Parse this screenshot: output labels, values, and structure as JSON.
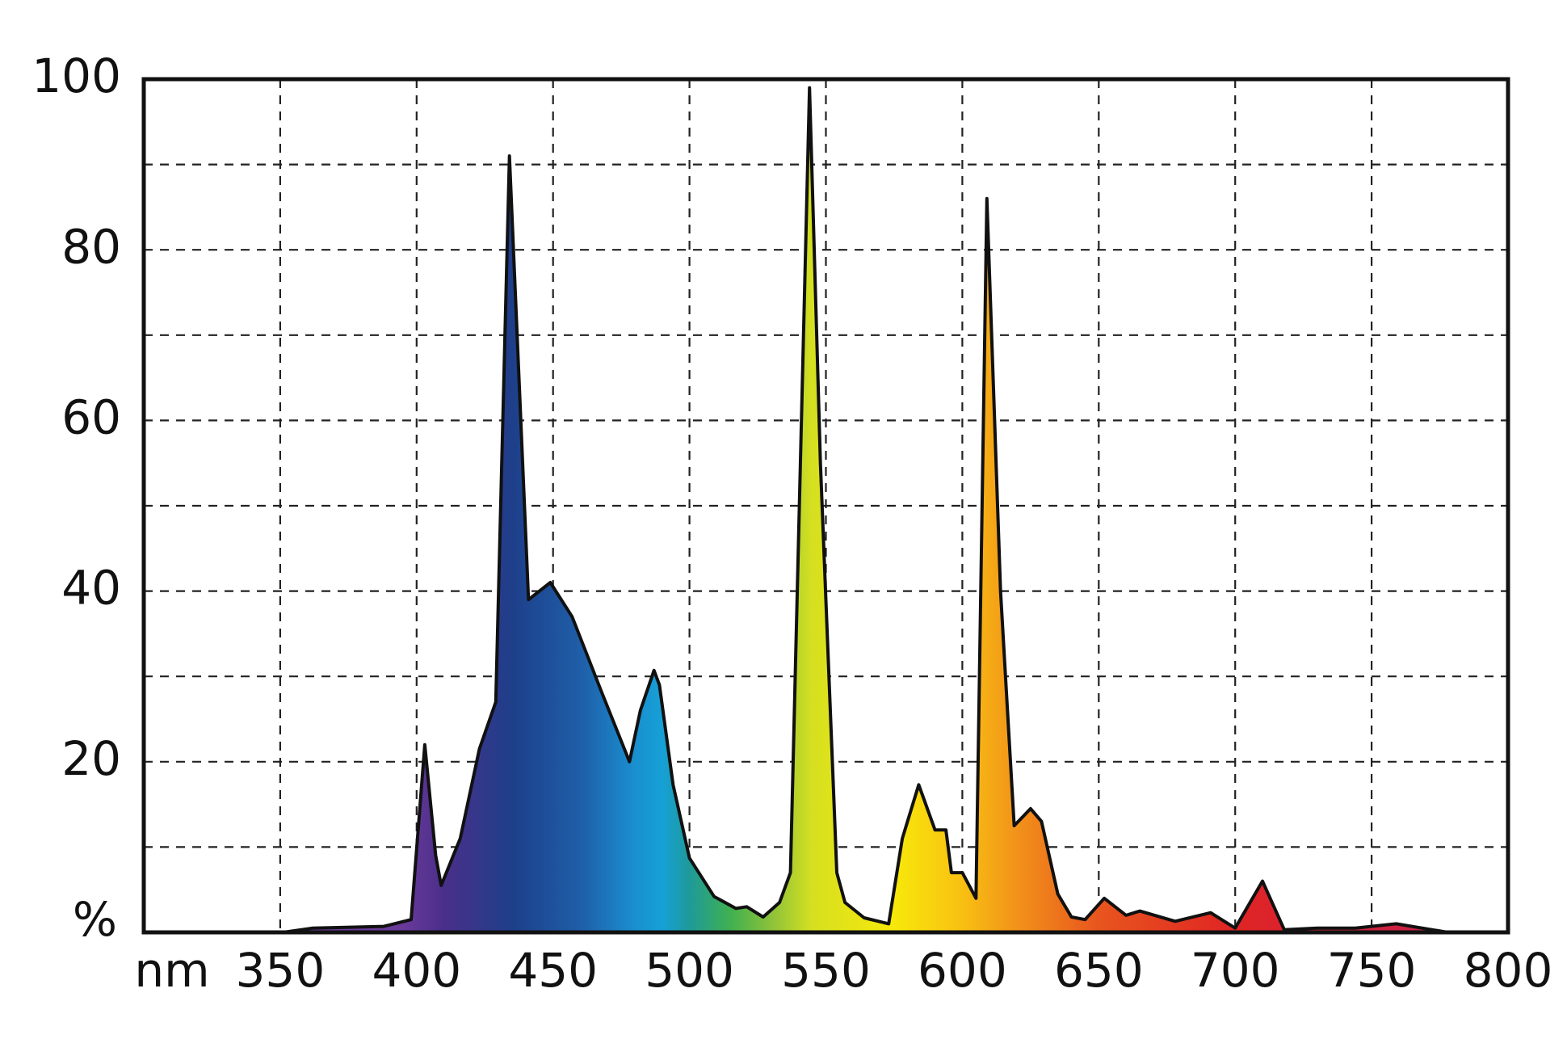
{
  "chart_data": {
    "type": "area",
    "x": [
      300,
      351,
      362,
      388,
      398,
      403,
      407,
      409,
      416,
      423,
      429,
      434,
      441,
      449,
      457,
      468,
      478,
      482,
      487,
      489,
      494,
      500,
      509,
      517,
      521,
      527,
      533,
      537,
      544,
      548,
      554,
      557,
      564,
      573,
      578,
      584,
      590,
      594,
      596,
      600,
      605,
      609,
      614,
      619,
      625,
      629,
      635,
      640,
      645,
      652,
      660,
      665,
      678,
      691,
      700,
      710,
      718,
      730,
      744,
      759,
      778,
      800
    ],
    "values": [
      0,
      0,
      0.5,
      0.7,
      1.5,
      22,
      9,
      5.5,
      11,
      21.5,
      27,
      91,
      39,
      41,
      37,
      28,
      20,
      26,
      30.7,
      29,
      17.3,
      8.7,
      4.2,
      2.8,
      3,
      1.8,
      3.5,
      7,
      99,
      55,
      7,
      3.5,
      1.7,
      1,
      11,
      17.3,
      12,
      12,
      7,
      7,
      4,
      86,
      40,
      12.5,
      14.5,
      13,
      4.5,
      1.8,
      1.5,
      4,
      2,
      2.5,
      1.3,
      2.3,
      0.5,
      6,
      0.3,
      0.5,
      0.5,
      1,
      0,
      0
    ],
    "xlim": [
      300,
      800
    ],
    "xticks": [
      {
        "value": 300,
        "label": "nm"
      },
      350,
      400,
      450,
      500,
      550,
      600,
      650,
      700,
      750,
      800
    ],
    "ylim": [
      0,
      100
    ],
    "yticks": [
      {
        "value": 0,
        "label": "%"
      },
      20,
      40,
      60,
      80,
      100
    ],
    "yminor": [
      10,
      30,
      50,
      70,
      90
    ],
    "grid": true
  }
}
